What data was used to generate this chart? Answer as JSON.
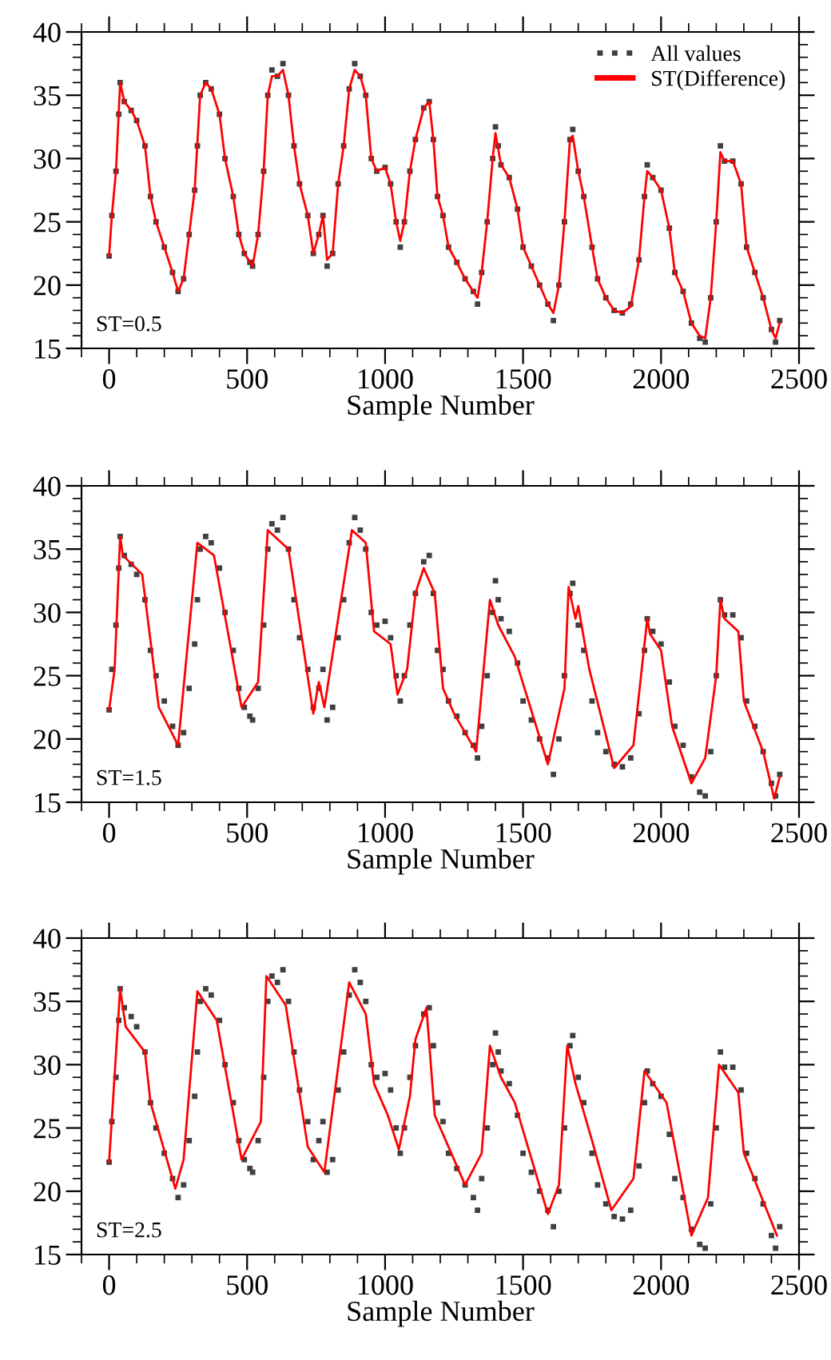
{
  "chart_data": [
    {
      "type": "line",
      "xlabel": "Sample Number",
      "annotations": [
        "ST=0.5"
      ],
      "xlim": [
        -100,
        2500
      ],
      "ylim": [
        15,
        40
      ],
      "xticks": [
        0,
        500,
        1000,
        1500,
        2000,
        2500
      ],
      "yticks": [
        15,
        20,
        25,
        30,
        35,
        40
      ],
      "legend": "top right",
      "grid": false,
      "series": [
        {
          "name": "All values",
          "type": "scatter",
          "marker": "square",
          "color": "#404040",
          "x": [
            0,
            10,
            25,
            35,
            40,
            55,
            80,
            100,
            130,
            150,
            170,
            200,
            230,
            250,
            270,
            290,
            310,
            320,
            330,
            350,
            370,
            400,
            420,
            450,
            470,
            490,
            510,
            520,
            540,
            560,
            575,
            590,
            610,
            630,
            650,
            670,
            690,
            720,
            740,
            760,
            775,
            790,
            810,
            830,
            850,
            870,
            890,
            910,
            930,
            950,
            970,
            1000,
            1020,
            1040,
            1055,
            1070,
            1090,
            1110,
            1140,
            1160,
            1175,
            1190,
            1210,
            1230,
            1260,
            1290,
            1320,
            1335,
            1350,
            1370,
            1390,
            1400,
            1410,
            1420,
            1450,
            1480,
            1500,
            1530,
            1560,
            1590,
            1610,
            1630,
            1650,
            1670,
            1680,
            1700,
            1720,
            1750,
            1770,
            1800,
            1830,
            1860,
            1890,
            1920,
            1940,
            1950,
            1970,
            2000,
            2030,
            2050,
            2080,
            2110,
            2140,
            2160,
            2180,
            2200,
            2215,
            2230,
            2260,
            2290,
            2310,
            2340,
            2370,
            2400,
            2415,
            2430
          ],
          "values": [
            22.3,
            25.5,
            29,
            33.5,
            36,
            34.5,
            33.8,
            33,
            31,
            27,
            25,
            23,
            21,
            19.5,
            20.5,
            24,
            27.5,
            31,
            35,
            36,
            35.5,
            33.5,
            30,
            27,
            24,
            22.5,
            21.8,
            21.5,
            24,
            29,
            35,
            37,
            36.5,
            37.5,
            35,
            31,
            28,
            25.5,
            22.5,
            24,
            25.5,
            21.5,
            22.5,
            28,
            31,
            35.5,
            37.5,
            36.5,
            35,
            30,
            29,
            29.3,
            28,
            25,
            23,
            25,
            29,
            31.5,
            34,
            34.5,
            31.5,
            27,
            25.5,
            23,
            21.8,
            20.5,
            19.5,
            18.5,
            21,
            25,
            30,
            32.5,
            31,
            29.5,
            28.5,
            26,
            23,
            21.5,
            20,
            18.5,
            17.2,
            20,
            25,
            31.5,
            32.3,
            29,
            27,
            23,
            20.5,
            19,
            18,
            17.8,
            18.5,
            22,
            27,
            29.5,
            28.5,
            27.5,
            24.5,
            21,
            19.5,
            17,
            15.8,
            15.5,
            19,
            25,
            31,
            29.8,
            29.8,
            28,
            23,
            21,
            19,
            16.5,
            15.5,
            17.2
          ]
        },
        {
          "name": "ST(Difference)",
          "type": "line",
          "marker": "none",
          "line_style": "solid",
          "color": "#ff0000",
          "x": [
            0,
            10,
            25,
            40,
            55,
            80,
            100,
            130,
            150,
            170,
            200,
            230,
            250,
            270,
            290,
            310,
            330,
            350,
            370,
            400,
            420,
            450,
            470,
            490,
            520,
            540,
            560,
            575,
            590,
            610,
            630,
            650,
            670,
            690,
            720,
            740,
            760,
            775,
            790,
            810,
            830,
            850,
            870,
            890,
            910,
            930,
            950,
            970,
            1000,
            1020,
            1040,
            1055,
            1070,
            1090,
            1110,
            1140,
            1160,
            1175,
            1190,
            1210,
            1230,
            1260,
            1290,
            1335,
            1350,
            1370,
            1390,
            1400,
            1420,
            1450,
            1480,
            1500,
            1530,
            1560,
            1590,
            1610,
            1630,
            1650,
            1670,
            1680,
            1700,
            1720,
            1750,
            1770,
            1800,
            1830,
            1860,
            1890,
            1920,
            1940,
            1950,
            1970,
            2000,
            2030,
            2050,
            2080,
            2110,
            2140,
            2160,
            2180,
            2200,
            2215,
            2230,
            2260,
            2290,
            2310,
            2340,
            2370,
            2400,
            2415,
            2430
          ],
          "values": [
            22.3,
            25.5,
            29,
            36,
            34.5,
            33.8,
            33,
            31,
            27,
            25,
            23,
            21,
            19.5,
            20.5,
            24,
            27.5,
            35,
            36,
            35.5,
            33.5,
            30,
            27,
            24,
            22.5,
            21.5,
            24,
            29,
            35,
            36.5,
            36.5,
            37,
            35,
            31,
            28,
            25.5,
            22.5,
            24,
            25.5,
            22,
            22.5,
            28,
            31,
            35.5,
            37,
            36.5,
            35,
            30,
            29,
            29.3,
            28,
            25,
            23.5,
            25,
            29,
            31.5,
            34,
            34.5,
            31.5,
            27,
            25.5,
            23,
            21.8,
            20.5,
            19,
            21,
            25,
            30,
            32,
            29.5,
            28.5,
            26,
            23,
            21.5,
            20,
            18.5,
            17.8,
            20,
            25,
            31.5,
            31.8,
            29,
            27,
            23,
            20.5,
            19,
            18,
            17.8,
            18.3,
            22,
            27,
            29,
            28.5,
            27.5,
            24.5,
            21,
            19.5,
            17,
            16,
            15.8,
            19,
            25,
            30.5,
            29.8,
            29.8,
            28,
            23,
            21,
            19,
            16.5,
            15.8,
            17
          ]
        }
      ]
    },
    {
      "type": "line",
      "xlabel": "Sample Number",
      "annotations": [
        "ST=1.5"
      ],
      "xlim": [
        -100,
        2500
      ],
      "ylim": [
        15,
        40
      ],
      "xticks": [
        0,
        500,
        1000,
        1500,
        2000,
        2500
      ],
      "yticks": [
        15,
        20,
        25,
        30,
        35,
        40
      ],
      "grid": false,
      "series": [
        {
          "type": "scatter",
          "marker": "square",
          "color": "#404040",
          "x": [
            0,
            10,
            25,
            35,
            40,
            55,
            80,
            100,
            130,
            150,
            170,
            200,
            230,
            250,
            270,
            290,
            310,
            320,
            330,
            350,
            370,
            400,
            420,
            450,
            470,
            490,
            510,
            520,
            540,
            560,
            575,
            590,
            610,
            630,
            650,
            670,
            690,
            720,
            740,
            760,
            775,
            790,
            810,
            830,
            850,
            870,
            890,
            910,
            930,
            950,
            970,
            1000,
            1020,
            1040,
            1055,
            1070,
            1090,
            1110,
            1140,
            1160,
            1175,
            1190,
            1210,
            1230,
            1260,
            1290,
            1320,
            1335,
            1350,
            1370,
            1390,
            1400,
            1410,
            1420,
            1450,
            1480,
            1500,
            1530,
            1560,
            1590,
            1610,
            1630,
            1650,
            1670,
            1680,
            1700,
            1720,
            1750,
            1770,
            1800,
            1830,
            1860,
            1890,
            1920,
            1940,
            1950,
            1970,
            2000,
            2030,
            2050,
            2080,
            2110,
            2140,
            2160,
            2180,
            2200,
            2215,
            2230,
            2260,
            2290,
            2310,
            2340,
            2370,
            2400,
            2415,
            2430
          ],
          "values": [
            22.3,
            25.5,
            29,
            33.5,
            36,
            34.5,
            33.8,
            33,
            31,
            27,
            25,
            23,
            21,
            19.5,
            20.5,
            24,
            27.5,
            31,
            35,
            36,
            35.5,
            33.5,
            30,
            27,
            24,
            22.5,
            21.8,
            21.5,
            24,
            29,
            35,
            37,
            36.5,
            37.5,
            35,
            31,
            28,
            25.5,
            22.5,
            24,
            25.5,
            21.5,
            22.5,
            28,
            31,
            35.5,
            37.5,
            36.5,
            35,
            30,
            29,
            29.3,
            28,
            25,
            23,
            25,
            29,
            31.5,
            34,
            34.5,
            31.5,
            27,
            25.5,
            23,
            21.8,
            20.5,
            19.5,
            18.5,
            21,
            25,
            30,
            32.5,
            31,
            29.5,
            28.5,
            26,
            23,
            21.5,
            20,
            18.5,
            17.2,
            20,
            25,
            31.5,
            32.3,
            29,
            27,
            23,
            20.5,
            19,
            18,
            17.8,
            18.5,
            22,
            27,
            29.5,
            28.5,
            27.5,
            24.5,
            21,
            19.5,
            17,
            15.8,
            15.5,
            19,
            25,
            31,
            29.8,
            29.8,
            28,
            23,
            21,
            19,
            16.5,
            15.5,
            17.2
          ]
        },
        {
          "type": "line",
          "marker": "none",
          "line_style": "solid",
          "color": "#ff0000",
          "x": [
            0,
            20,
            40,
            50,
            120,
            180,
            250,
            320,
            380,
            480,
            540,
            575,
            650,
            740,
            760,
            780,
            880,
            930,
            960,
            1020,
            1045,
            1080,
            1110,
            1140,
            1180,
            1210,
            1250,
            1330,
            1380,
            1410,
            1470,
            1590,
            1650,
            1665,
            1690,
            1700,
            1740,
            1830,
            1900,
            1950,
            1960,
            2000,
            2040,
            2110,
            2160,
            2200,
            2215,
            2230,
            2280,
            2300,
            2370,
            2410,
            2430
          ],
          "values": [
            22.3,
            25.5,
            36,
            34.5,
            33,
            22.5,
            19.5,
            35.5,
            34.5,
            22.5,
            24.5,
            36.5,
            35,
            22,
            24.5,
            22.5,
            36.5,
            35.5,
            28.5,
            27.5,
            23.5,
            25.5,
            31.5,
            33.5,
            31.5,
            24,
            22,
            19,
            31,
            29,
            26.5,
            18,
            24,
            32,
            29.5,
            30.5,
            25.5,
            17.7,
            19.5,
            29.5,
            28.3,
            27,
            21,
            16.5,
            18.5,
            25,
            31,
            29.5,
            28.5,
            23,
            19,
            15.3,
            17
          ]
        }
      ]
    },
    {
      "type": "line",
      "xlabel": "Sample Number",
      "annotations": [
        "ST=2.5"
      ],
      "xlim": [
        -100,
        2500
      ],
      "ylim": [
        15,
        40
      ],
      "xticks": [
        0,
        500,
        1000,
        1500,
        2000,
        2500
      ],
      "yticks": [
        15,
        20,
        25,
        30,
        35,
        40
      ],
      "grid": false,
      "series": [
        {
          "type": "scatter",
          "marker": "square",
          "color": "#404040",
          "x": [
            0,
            10,
            25,
            35,
            40,
            55,
            80,
            100,
            130,
            150,
            170,
            200,
            230,
            250,
            270,
            290,
            310,
            320,
            330,
            350,
            370,
            400,
            420,
            450,
            470,
            490,
            510,
            520,
            540,
            560,
            575,
            590,
            610,
            630,
            650,
            670,
            690,
            720,
            740,
            760,
            775,
            790,
            810,
            830,
            850,
            870,
            890,
            910,
            930,
            950,
            970,
            1000,
            1020,
            1040,
            1055,
            1070,
            1090,
            1110,
            1140,
            1160,
            1175,
            1190,
            1210,
            1230,
            1260,
            1290,
            1320,
            1335,
            1350,
            1370,
            1390,
            1400,
            1410,
            1420,
            1450,
            1480,
            1500,
            1530,
            1560,
            1590,
            1610,
            1630,
            1650,
            1670,
            1680,
            1700,
            1720,
            1750,
            1770,
            1800,
            1830,
            1860,
            1890,
            1920,
            1940,
            1950,
            1970,
            2000,
            2030,
            2050,
            2080,
            2110,
            2140,
            2160,
            2180,
            2200,
            2215,
            2230,
            2260,
            2290,
            2310,
            2340,
            2370,
            2400,
            2415,
            2430
          ],
          "values": [
            22.3,
            25.5,
            29,
            33.5,
            36,
            34.5,
            33.8,
            33,
            31,
            27,
            25,
            23,
            21,
            19.5,
            20.5,
            24,
            27.5,
            31,
            35,
            36,
            35.5,
            33.5,
            30,
            27,
            24,
            22.5,
            21.8,
            21.5,
            24,
            29,
            35,
            37,
            36.5,
            37.5,
            35,
            31,
            28,
            25.5,
            22.5,
            24,
            25.5,
            21.5,
            22.5,
            28,
            31,
            35.5,
            37.5,
            36.5,
            35,
            30,
            29,
            29.3,
            28,
            25,
            23,
            25,
            29,
            31.5,
            34,
            34.5,
            31.5,
            27,
            25.5,
            23,
            21.8,
            20.5,
            19.5,
            18.5,
            21,
            25,
            30,
            32.5,
            31,
            29.5,
            28.5,
            26,
            23,
            21.5,
            20,
            18.5,
            17.2,
            20,
            25,
            31.5,
            32.3,
            29,
            27,
            23,
            20.5,
            19,
            18,
            17.8,
            18.5,
            22,
            27,
            29.5,
            28.5,
            27.5,
            24.5,
            21,
            19.5,
            17,
            15.8,
            15.5,
            19,
            25,
            31,
            29.8,
            29.8,
            28,
            23,
            21,
            19,
            16.5,
            15.5,
            17.2
          ]
        },
        {
          "type": "line",
          "marker": "none",
          "line_style": "solid",
          "color": "#ff0000",
          "x": [
            0,
            40,
            60,
            130,
            150,
            240,
            270,
            320,
            390,
            480,
            550,
            570,
            640,
            720,
            780,
            870,
            930,
            960,
            1010,
            1050,
            1090,
            1110,
            1150,
            1180,
            1290,
            1350,
            1380,
            1420,
            1470,
            1590,
            1630,
            1660,
            1690,
            1750,
            1820,
            1900,
            1940,
            2020,
            2110,
            2170,
            2210,
            2280,
            2300,
            2420
          ],
          "values": [
            22.3,
            36,
            33,
            31,
            27,
            20.2,
            22.5,
            35.8,
            33.5,
            22.5,
            25.5,
            37,
            34.7,
            23.5,
            21.5,
            36.5,
            34,
            28.5,
            26,
            23.3,
            27.5,
            32,
            34.5,
            26,
            20.5,
            23,
            31.5,
            29,
            27,
            18.2,
            20.5,
            31.5,
            28.5,
            24,
            18.5,
            21,
            29.5,
            27,
            16.5,
            19.5,
            30,
            27.8,
            23,
            16.5
          ]
        }
      ]
    }
  ]
}
